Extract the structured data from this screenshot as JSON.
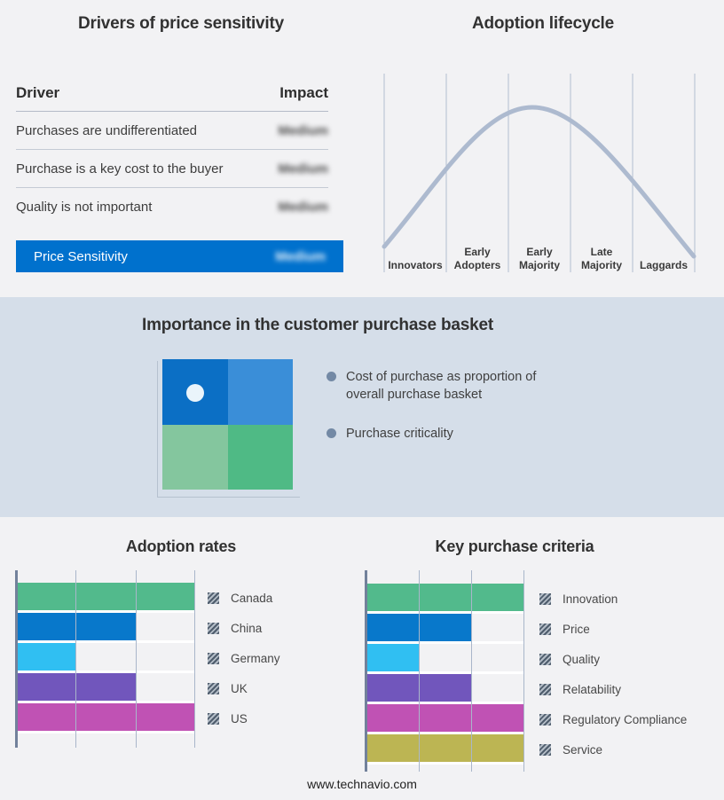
{
  "page": {
    "footer_url": "www.technavio.com",
    "background": "#f2f2f4",
    "band_background": "#d5dee9"
  },
  "drivers_panel": {
    "title": "Drivers of price sensitivity",
    "header": {
      "driver": "Driver",
      "impact": "Impact"
    },
    "rows": [
      {
        "driver": "Purchases are undifferentiated",
        "impact": "Medium"
      },
      {
        "driver": "Purchase is a key cost to the buyer",
        "impact": "Medium"
      },
      {
        "driver": "Quality is not important",
        "impact": "Medium"
      }
    ],
    "impact_values_blurred": true,
    "summary_row": {
      "label": "Price Sensitivity",
      "impact": "Medium",
      "background": "#0071cd"
    }
  },
  "lifecycle_panel": {
    "title": "Adoption lifecycle",
    "stages": [
      {
        "label": "Innovators"
      },
      {
        "label": "Early Adopters"
      },
      {
        "label": "Early Majority"
      },
      {
        "label": "Late Majority"
      },
      {
        "label": "Laggards"
      }
    ],
    "curve_color": "#adbacf"
  },
  "basket_panel": {
    "title": "Importance in the customer purchase basket",
    "bullets": [
      {
        "text": "Cost of purchase as proportion of overall purchase basket"
      },
      {
        "text": "Purchase criticality"
      }
    ],
    "quadrant": {
      "top_left": "#0b6fc5",
      "top_right": "#3a8ed8",
      "bottom_left": "#84c69e",
      "bottom_right": "#4fba85",
      "marker_color": "#eaf4fb",
      "marker_quadrant": "top_left"
    }
  },
  "chart_data": [
    {
      "id": "adoption_rates",
      "type": "bar",
      "orientation": "horizontal",
      "title": "Adoption rates",
      "categories": [
        "Canada",
        "China",
        "Germany",
        "UK",
        "US"
      ],
      "values_pct": [
        100,
        66.7,
        33.3,
        66.7,
        100
      ],
      "xlim": [
        0,
        100
      ],
      "gridlines_pct": [
        0,
        33.3,
        66.7,
        100
      ],
      "colors": [
        "#52ba8c",
        "#0878cb",
        "#30bff2",
        "#7156bc",
        "#c052b4"
      ],
      "legend_position": "right",
      "axis_labels_shown": false
    },
    {
      "id": "key_purchase_criteria",
      "type": "bar",
      "orientation": "horizontal",
      "title": "Key purchase criteria",
      "categories": [
        "Innovation",
        "Price",
        "Quality",
        "Relatability",
        "Regulatory Compliance",
        "Service"
      ],
      "values_pct": [
        100,
        66.7,
        33.3,
        66.7,
        100,
        100
      ],
      "xlim": [
        0,
        100
      ],
      "gridlines_pct": [
        0,
        33.3,
        66.7,
        100
      ],
      "colors": [
        "#52ba8c",
        "#0878cb",
        "#30bff2",
        "#7156bc",
        "#c052b4",
        "#bcb553"
      ],
      "legend_position": "right",
      "axis_labels_shown": false
    },
    {
      "id": "adoption_lifecycle",
      "type": "line",
      "title": "Adoption lifecycle",
      "x": [
        "Innovators",
        "Early Adopters",
        "Early Majority",
        "Late Majority",
        "Laggards"
      ],
      "y_relative_height": [
        0.33,
        0.74,
        1.0,
        0.63,
        0.28
      ],
      "shape": "smooth bell curve peaking over Early Majority",
      "line_color": "#adbacf",
      "vertical_gridlines": 6,
      "y_axis_shown": false
    }
  ]
}
